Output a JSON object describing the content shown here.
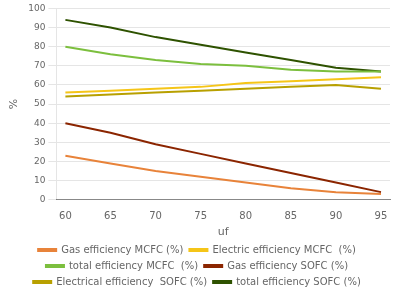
{
  "chart_data": {
    "type": "line",
    "x": [
      60,
      65,
      70,
      75,
      80,
      85,
      90,
      95
    ],
    "series": [
      {
        "name": "Gas efficiency MCFC (%)",
        "color": "#E8833A",
        "values": [
          23,
          19,
          15,
          12,
          9,
          6,
          4,
          3
        ]
      },
      {
        "name": "Electric efficiency MCFC  (%)",
        "color": "#F5C518",
        "values": [
          56,
          57,
          58,
          59,
          61,
          62,
          63,
          64
        ]
      },
      {
        "name": "total efficiency MCFC  (%)",
        "color": "#7CBF3E",
        "values": [
          80,
          76,
          73,
          71,
          70,
          68,
          67,
          67
        ]
      },
      {
        "name": "Gas efficiency SOFC (%)",
        "color": "#8B2500",
        "values": [
          40,
          35,
          29,
          24,
          19,
          14,
          9,
          4
        ]
      },
      {
        "name": "Electrical efficiency  SOFC (%)",
        "color": "#B8A000",
        "values": [
          54,
          55,
          56,
          57,
          58,
          59,
          60,
          58
        ]
      },
      {
        "name": "total efficiency SOFC (%)",
        "color": "#2E5200",
        "values": [
          94,
          90,
          85,
          81,
          77,
          73,
          69,
          67
        ]
      }
    ],
    "xlabel": "uf",
    "ylabel": "%",
    "xlim": [
      59,
      96
    ],
    "xticks": [
      60,
      65,
      70,
      75,
      80,
      85,
      90,
      95
    ],
    "ylim": [
      0,
      100
    ],
    "yticks": [
      0,
      10,
      20,
      30,
      40,
      50,
      60,
      70,
      80,
      90,
      100
    ],
    "grid": "y",
    "legend": "bottom"
  }
}
